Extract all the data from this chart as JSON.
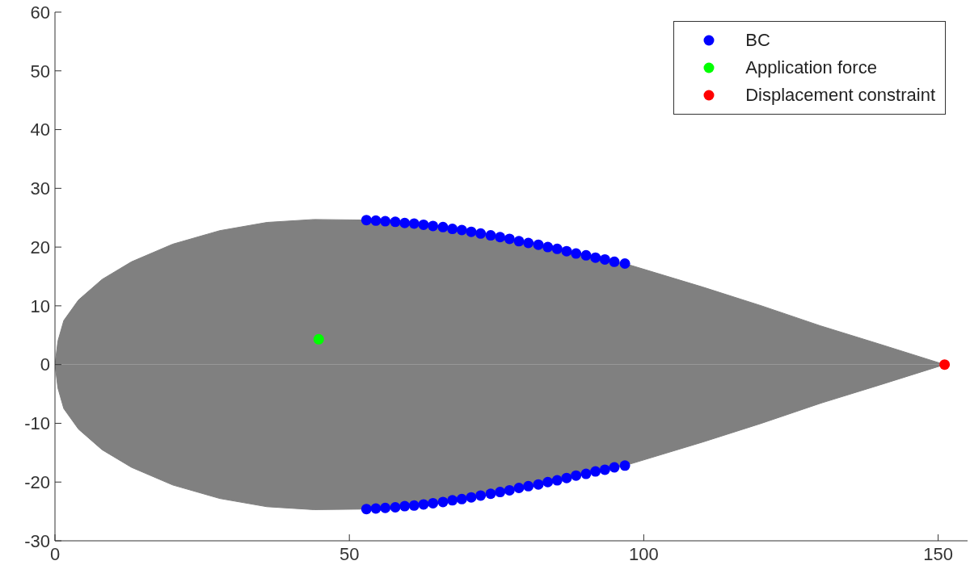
{
  "chart_data": {
    "type": "scatter",
    "xlim": [
      0,
      155
    ],
    "ylim": [
      -30,
      60
    ],
    "xticks": [
      0,
      50,
      100,
      150
    ],
    "yticks": [
      -30,
      -20,
      -10,
      0,
      10,
      20,
      30,
      40,
      50,
      60
    ],
    "legend": "top right",
    "series": [
      {
        "type": "area",
        "color": "#808080",
        "x": [
          0,
          0.5,
          1.5,
          4,
          8,
          13,
          20,
          28,
          36,
          44,
          52.9,
          60,
          70,
          80,
          90,
          96.8,
          110,
          120,
          130,
          140,
          151.1
        ],
        "values": [
          0,
          4,
          7.5,
          11,
          14.5,
          17.5,
          20.5,
          22.8,
          24.2,
          24.7,
          24.6,
          24.1,
          22.7,
          20.8,
          18.6,
          17.2,
          13.2,
          10,
          6.6,
          3.5,
          0
        ]
      },
      {
        "type": "area",
        "color": "#808080",
        "x": [
          0,
          0.5,
          1.5,
          4,
          8,
          13,
          20,
          28,
          36,
          44,
          52.9,
          60,
          70,
          80,
          90,
          96.8,
          110,
          120,
          130,
          140,
          151.1
        ],
        "values": [
          0,
          -4,
          -7.5,
          -11,
          -14.5,
          -17.5,
          -20.5,
          -22.8,
          -24.2,
          -24.7,
          -24.6,
          -24.1,
          -22.7,
          -20.8,
          -18.6,
          -17.2,
          -13.2,
          -10,
          -6.6,
          -3.5,
          0
        ]
      },
      {
        "marker": "circle",
        "name": "BC",
        "color": "#0000ff",
        "x": [
          52.9,
          54.5,
          56.1,
          57.8,
          59.4,
          61.0,
          62.6,
          64.2,
          65.9,
          67.5,
          69.1,
          70.7,
          72.3,
          74.0,
          75.6,
          77.2,
          78.8,
          80.4,
          82.1,
          83.7,
          85.3,
          86.9,
          88.5,
          90.2,
          91.8,
          93.4,
          95.0,
          96.8,
          52.9,
          54.5,
          56.1,
          57.8,
          59.4,
          61.0,
          62.6,
          64.2,
          65.9,
          67.5,
          69.1,
          70.7,
          72.3,
          74.0,
          75.6,
          77.2,
          78.8,
          80.4,
          82.1,
          83.7,
          85.3,
          86.9,
          88.5,
          90.2,
          91.8,
          93.4,
          95.0,
          96.8
        ],
        "values": [
          24.6,
          24.5,
          24.4,
          24.3,
          24.1,
          24.0,
          23.8,
          23.6,
          23.4,
          23.1,
          22.9,
          22.6,
          22.3,
          22.0,
          21.7,
          21.4,
          21.0,
          20.7,
          20.4,
          20.0,
          19.7,
          19.3,
          18.9,
          18.6,
          18.2,
          17.9,
          17.5,
          17.2,
          -24.6,
          -24.5,
          -24.4,
          -24.3,
          -24.1,
          -24.0,
          -23.8,
          -23.6,
          -23.4,
          -23.1,
          -22.9,
          -22.6,
          -22.3,
          -22.0,
          -21.7,
          -21.4,
          -21.0,
          -20.7,
          -20.4,
          -20.0,
          -19.7,
          -19.3,
          -18.9,
          -18.6,
          -18.2,
          -17.9,
          -17.5,
          -17.2
        ]
      },
      {
        "marker": "circle",
        "name": "Application force",
        "color": "#00ff00",
        "x": [
          44.8
        ],
        "values": [
          4.3
        ]
      },
      {
        "marker": "circle",
        "name": "Displacement constraint",
        "color": "#ff0000",
        "x": [
          151.1
        ],
        "values": [
          0
        ]
      }
    ]
  }
}
